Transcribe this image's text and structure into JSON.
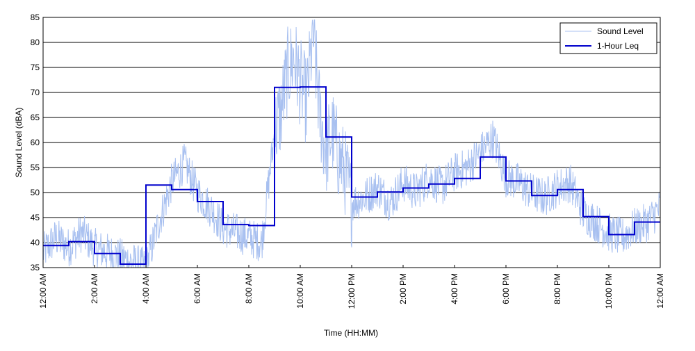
{
  "chart_data": {
    "type": "line",
    "title": "",
    "xlabel": "Time (HH:MM)",
    "ylabel": "Sound Level (dBA)",
    "ylim": [
      35,
      85
    ],
    "y_ticks": [
      35,
      40,
      45,
      50,
      55,
      60,
      65,
      70,
      75,
      80,
      85
    ],
    "xlim_hours": [
      0,
      24
    ],
    "x_tick_hours": [
      0,
      2,
      4,
      6,
      8,
      10,
      12,
      14,
      16,
      18,
      20,
      22,
      24
    ],
    "x_tick_labels": [
      "12:00 AM",
      "2:00 AM",
      "4:00 AM",
      "6:00 AM",
      "8:00 AM",
      "10:00 AM",
      "12:00 PM",
      "2:00 PM",
      "4:00 PM",
      "6:00 PM",
      "8:00 PM",
      "10:00 PM",
      "12:00 AM"
    ],
    "grid": "horizontal",
    "legend_position": "top-right",
    "series": [
      {
        "name": "Sound Level",
        "color": "#a8c0f0",
        "style": "thin-line",
        "x": [
          0,
          0.5,
          1,
          1.5,
          2,
          2.5,
          3,
          3.5,
          4,
          4.5,
          5,
          5.5,
          6,
          6.5,
          7,
          7.5,
          8,
          8.5,
          9,
          9.25,
          9.5,
          9.75,
          10,
          10.25,
          10.5,
          10.75,
          11,
          11.25,
          11.5,
          11.75,
          12,
          12.5,
          13,
          13.5,
          14,
          14.5,
          15,
          15.5,
          16,
          16.5,
          17,
          17.5,
          18,
          18.5,
          19,
          19.5,
          20,
          20.5,
          21,
          21.5,
          22,
          22.5,
          23,
          23.5,
          24
        ],
        "y": [
          38,
          41,
          39,
          42,
          39,
          38,
          37,
          36,
          35,
          44,
          52,
          56,
          50,
          47,
          43,
          42,
          41,
          40,
          62,
          66,
          74,
          77,
          72,
          68,
          82,
          66,
          58,
          62,
          57,
          54,
          48,
          49,
          51,
          48,
          52,
          50,
          53,
          51,
          54,
          55,
          58,
          61,
          53,
          52,
          50,
          49,
          51,
          52,
          46,
          44,
          42,
          41,
          43,
          44,
          47
        ]
      },
      {
        "name": "1-Hour Leq",
        "color": "#0000cc",
        "style": "step",
        "hours": [
          0,
          1,
          2,
          3,
          4,
          5,
          6,
          7,
          8,
          9,
          10,
          11,
          12,
          13,
          14,
          15,
          16,
          17,
          18,
          19,
          20,
          21,
          22,
          23
        ],
        "values": [
          39.4,
          40.2,
          37.8,
          35.7,
          51.5,
          50.6,
          48.2,
          43.6,
          43.4,
          71.0,
          71.1,
          61.1,
          49.1,
          50.1,
          50.9,
          51.7,
          52.8,
          57.1,
          52.3,
          49.4,
          50.6,
          45.2,
          41.6,
          44.1
        ]
      }
    ]
  }
}
